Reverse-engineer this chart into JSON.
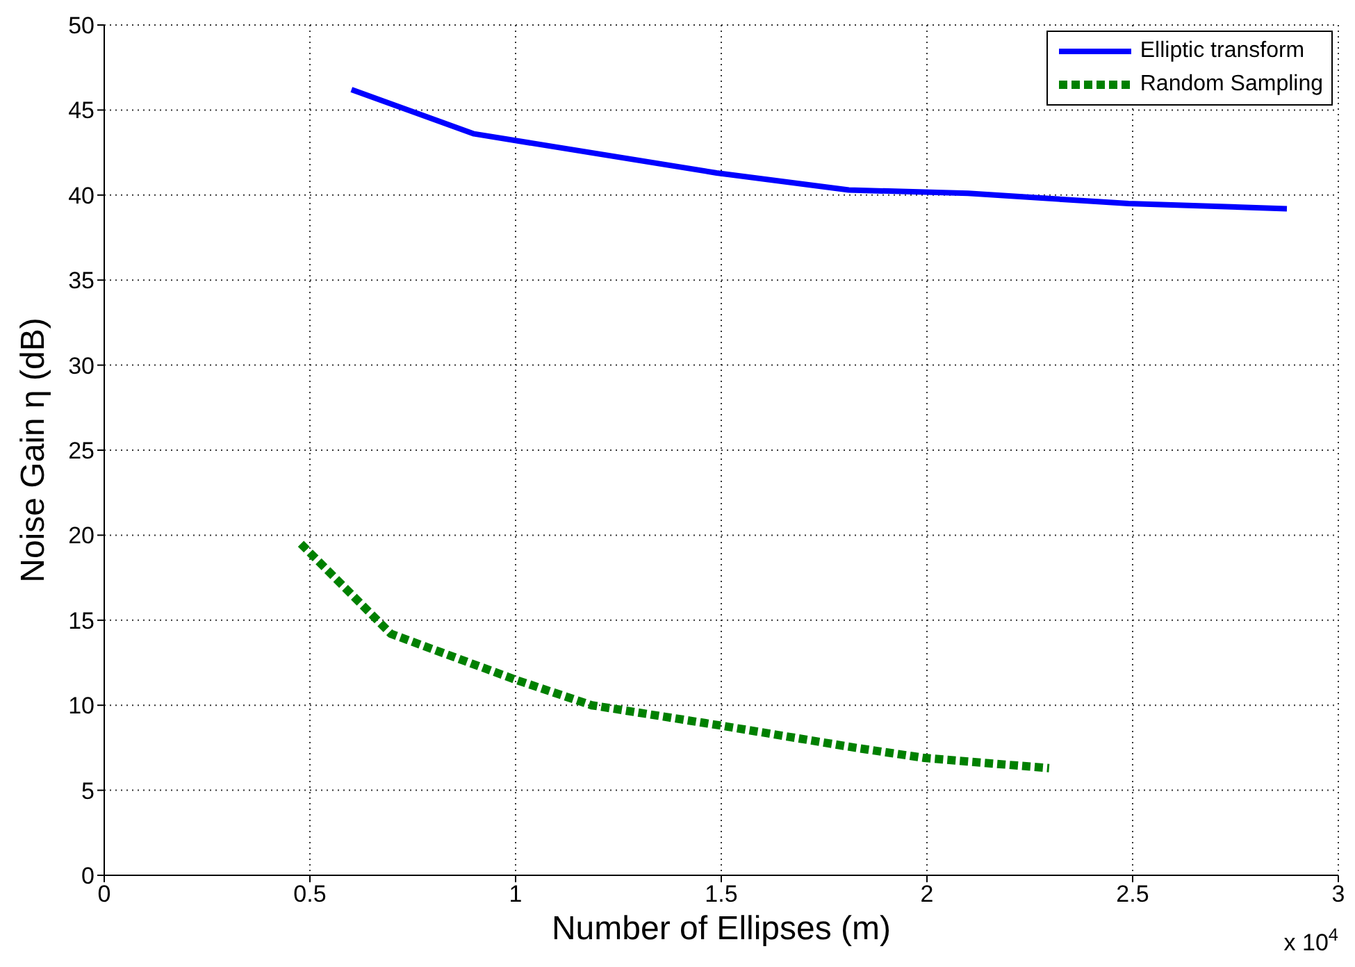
{
  "chart_data": {
    "type": "line",
    "xlabel": "Number of Ellipses (m)",
    "ylabel": "Noise Gain  η (dB)",
    "xlim": [
      0,
      3
    ],
    "xticks": [
      0,
      0.5,
      1,
      1.5,
      2,
      2.5,
      3
    ],
    "ylim": [
      0,
      50
    ],
    "yticks": [
      0,
      5,
      10,
      15,
      20,
      25,
      30,
      35,
      40,
      45,
      50
    ],
    "grid": true,
    "legend": "top right",
    "annotations": [
      "x 10$^{4}$"
    ],
    "series": [
      {
        "name": "Elliptic transform",
        "color": "#0000ff",
        "line_style": "solid",
        "x": [
          0.601,
          0.899,
          1.489,
          1.81,
          2.1,
          2.49,
          2.875
        ],
        "values": [
          46.2,
          43.6,
          41.3,
          40.3,
          40.1,
          39.5,
          39.2
        ]
      },
      {
        "name": "Random Sampling",
        "color": "#008000",
        "line_style": "dashed",
        "x": [
          0.478,
          0.697,
          1.0,
          1.185,
          1.5,
          1.826,
          1.994,
          2.297
        ],
        "values": [
          19.5,
          14.2,
          11.5,
          10,
          8.8,
          7.5,
          6.9,
          6.3
        ]
      }
    ]
  }
}
